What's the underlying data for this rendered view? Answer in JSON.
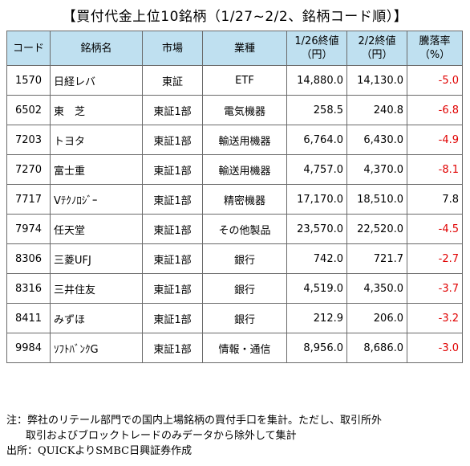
{
  "title": "【買付代金上位10銘柄（1/27~2/2、銘柄コード順）】",
  "headers": {
    "code": "コード",
    "name": "銘柄名",
    "market": "市場",
    "sector": "業種",
    "price1": "1/26終値",
    "price1_unit": "（円）",
    "price2": "2/2終値",
    "price2_unit": "（円）",
    "change": "騰落率",
    "change_unit": "（%）"
  },
  "rows": [
    {
      "code": "1570",
      "name": "日経レバ",
      "market": "東証",
      "sector": "ETF",
      "price1": "14,880.0",
      "price2": "14,130.0",
      "change": "-5.0"
    },
    {
      "code": "6502",
      "name": "東　芝",
      "market": "東証1部",
      "sector": "電気機器",
      "price1": "258.5",
      "price2": "240.8",
      "change": "-6.8"
    },
    {
      "code": "7203",
      "name": "トヨタ",
      "market": "東証1部",
      "sector": "輸送用機器",
      "price1": "6,764.0",
      "price2": "6,430.0",
      "change": "-4.9"
    },
    {
      "code": "7270",
      "name": "富士重",
      "market": "東証1部",
      "sector": "輸送用機器",
      "price1": "4,757.0",
      "price2": "4,370.0",
      "change": "-8.1"
    },
    {
      "code": "7717",
      "name": "Vﾃｸﾉﾛｼﾞｰ",
      "market": "東証1部",
      "sector": "精密機器",
      "price1": "17,170.0",
      "price2": "18,510.0",
      "change": "7.8"
    },
    {
      "code": "7974",
      "name": "任天堂",
      "market": "東証1部",
      "sector": "その他製品",
      "price1": "23,570.0",
      "price2": "22,520.0",
      "change": "-4.5"
    },
    {
      "code": "8306",
      "name": "三菱UFJ",
      "market": "東証1部",
      "sector": "銀行",
      "price1": "742.0",
      "price2": "721.7",
      "change": "-2.7"
    },
    {
      "code": "8316",
      "name": "三井住友",
      "market": "東証1部",
      "sector": "銀行",
      "price1": "4,519.0",
      "price2": "4,350.0",
      "change": "-3.7"
    },
    {
      "code": "8411",
      "name": "みずほ",
      "market": "東証1部",
      "sector": "銀行",
      "price1": "212.9",
      "price2": "206.0",
      "change": "-3.2"
    },
    {
      "code": "9984",
      "name": "ｿﾌﾄﾊﾞﾝｸG",
      "market": "東証1部",
      "sector": "情報・通信",
      "price1": "8,956.0",
      "price2": "8,686.0",
      "change": "-3.0"
    }
  ],
  "colors": {
    "header_bg": "#bfe0f0",
    "negative": "#e00000"
  },
  "notes": {
    "line1": "注：弊社のリテール部門での国内上場銘柄の買付手口を集計。ただし、取引所外",
    "line2": "取引およびブロックトレードのみデータから除外して集計",
    "source": "出所：QUICKよりSMBC日興証券作成"
  }
}
